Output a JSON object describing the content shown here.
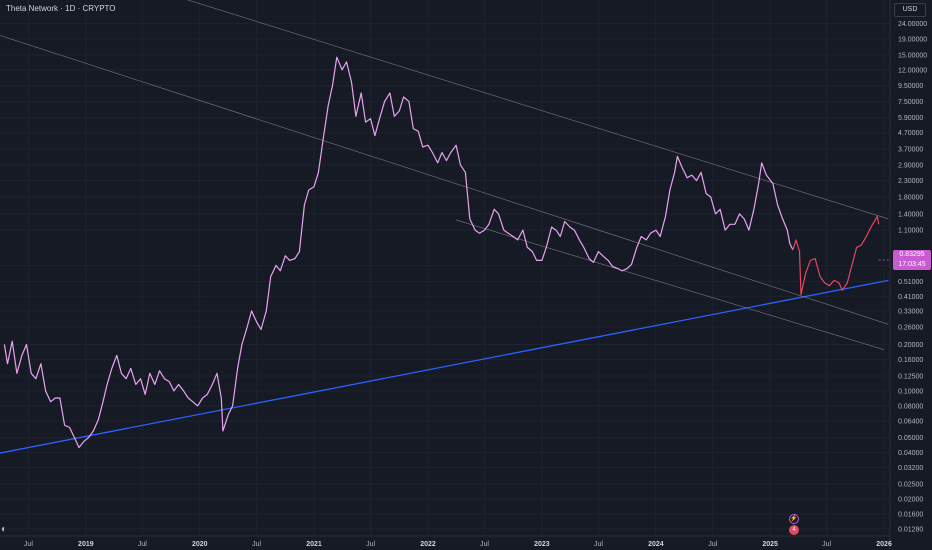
{
  "header": {
    "title": "Theta Network · 1D · CRYPTO",
    "currency": "USD"
  },
  "price_tag": {
    "price": "0.83295",
    "countdown": "17:03:45"
  },
  "markers": {
    "event_icon": "lightning-icon",
    "news_label": "4"
  },
  "logo_icon": "tradingview-logo-icon",
  "colors": {
    "background": "#161a25",
    "price_line": "#e9a3f0",
    "price_line_recent": "#e54662",
    "support_line": "#2962ff",
    "channel_lines": "#9598a1"
  },
  "chart_data": {
    "type": "line",
    "y_scale": "log",
    "ylim": [
      0.0115,
      34
    ],
    "xlim": [
      "2018-04-01",
      "2026-01-20"
    ],
    "y_ticks": [
      "24.00000",
      "19.00000",
      "15.00000",
      "12.00000",
      "9.50000",
      "7.50000",
      "5.90000",
      "4.70000",
      "3.70000",
      "2.90000",
      "2.30000",
      "1.80000",
      "1.40000",
      "1.10000",
      "0.65000",
      "0.51000",
      "0.41000",
      "0.33000",
      "0.26000",
      "0.20000",
      "0.16000",
      "0.12500",
      "0.10000",
      "0.08000",
      "0.06400",
      "0.05000",
      "0.04000",
      "0.03200",
      "0.02500",
      "0.02000",
      "0.01600",
      "0.01280"
    ],
    "x_ticks": [
      {
        "label": "Jul",
        "date": "2018-07-01",
        "year": false
      },
      {
        "label": "2019",
        "date": "2019-01-01",
        "year": true
      },
      {
        "label": "Jul",
        "date": "2019-07-01",
        "year": false
      },
      {
        "label": "2020",
        "date": "2020-01-01",
        "year": true
      },
      {
        "label": "Jul",
        "date": "2020-07-01",
        "year": false
      },
      {
        "label": "2021",
        "date": "2021-01-01",
        "year": true
      },
      {
        "label": "Jul",
        "date": "2021-07-01",
        "year": false
      },
      {
        "label": "2022",
        "date": "2022-01-01",
        "year": true
      },
      {
        "label": "Jul",
        "date": "2022-07-01",
        "year": false
      },
      {
        "label": "2023",
        "date": "2023-01-01",
        "year": true
      },
      {
        "label": "Jul",
        "date": "2023-07-01",
        "year": false
      },
      {
        "label": "2024",
        "date": "2024-01-01",
        "year": true
      },
      {
        "label": "Jul",
        "date": "2024-07-01",
        "year": false
      },
      {
        "label": "2025",
        "date": "2025-01-01",
        "year": true
      },
      {
        "label": "Jul",
        "date": "2025-07-01",
        "year": false
      },
      {
        "label": "2026",
        "date": "2026-01-01",
        "year": true
      }
    ],
    "series": [
      {
        "points": [
          [
            "2018-04-15",
            0.2
          ],
          [
            "2018-04-25",
            0.15
          ],
          [
            "2018-05-10",
            0.21
          ],
          [
            "2018-05-25",
            0.13
          ],
          [
            "2018-06-10",
            0.17
          ],
          [
            "2018-06-25",
            0.2
          ],
          [
            "2018-07-10",
            0.13
          ],
          [
            "2018-07-25",
            0.12
          ],
          [
            "2018-08-10",
            0.15
          ],
          [
            "2018-08-25",
            0.1
          ],
          [
            "2018-09-10",
            0.085
          ],
          [
            "2018-09-25",
            0.09
          ],
          [
            "2018-10-10",
            0.09
          ],
          [
            "2018-10-25",
            0.06
          ],
          [
            "2018-11-10",
            0.058
          ],
          [
            "2018-11-25",
            0.05
          ],
          [
            "2018-12-10",
            0.043
          ],
          [
            "2018-12-25",
            0.047
          ],
          [
            "2019-01-10",
            0.05
          ],
          [
            "2019-01-25",
            0.055
          ],
          [
            "2019-02-10",
            0.065
          ],
          [
            "2019-02-25",
            0.085
          ],
          [
            "2019-03-10",
            0.11
          ],
          [
            "2019-03-25",
            0.14
          ],
          [
            "2019-04-10",
            0.17
          ],
          [
            "2019-04-25",
            0.13
          ],
          [
            "2019-05-10",
            0.12
          ],
          [
            "2019-05-25",
            0.14
          ],
          [
            "2019-06-10",
            0.11
          ],
          [
            "2019-06-25",
            0.12
          ],
          [
            "2019-07-10",
            0.095
          ],
          [
            "2019-07-25",
            0.13
          ],
          [
            "2019-08-10",
            0.11
          ],
          [
            "2019-08-25",
            0.135
          ],
          [
            "2019-09-10",
            0.12
          ],
          [
            "2019-09-25",
            0.115
          ],
          [
            "2019-10-10",
            0.1
          ],
          [
            "2019-10-25",
            0.11
          ],
          [
            "2019-11-10",
            0.1
          ],
          [
            "2019-11-25",
            0.09
          ],
          [
            "2019-12-10",
            0.085
          ],
          [
            "2019-12-25",
            0.08
          ],
          [
            "2020-01-10",
            0.09
          ],
          [
            "2020-01-25",
            0.095
          ],
          [
            "2020-02-10",
            0.11
          ],
          [
            "2020-02-25",
            0.13
          ],
          [
            "2020-03-10",
            0.09
          ],
          [
            "2020-03-15",
            0.055
          ],
          [
            "2020-04-01",
            0.07
          ],
          [
            "2020-04-15",
            0.08
          ],
          [
            "2020-05-01",
            0.14
          ],
          [
            "2020-05-15",
            0.2
          ],
          [
            "2020-06-01",
            0.26
          ],
          [
            "2020-06-15",
            0.33
          ],
          [
            "2020-07-01",
            0.28
          ],
          [
            "2020-07-15",
            0.25
          ],
          [
            "2020-08-01",
            0.33
          ],
          [
            "2020-08-15",
            0.55
          ],
          [
            "2020-09-01",
            0.65
          ],
          [
            "2020-09-15",
            0.6
          ],
          [
            "2020-10-01",
            0.75
          ],
          [
            "2020-10-15",
            0.7
          ],
          [
            "2020-11-01",
            0.72
          ],
          [
            "2020-11-15",
            0.8
          ],
          [
            "2020-12-01",
            1.6
          ],
          [
            "2020-12-15",
            2.0
          ],
          [
            "2021-01-01",
            2.1
          ],
          [
            "2021-01-15",
            2.6
          ],
          [
            "2021-02-01",
            4.5
          ],
          [
            "2021-02-15",
            7.0
          ],
          [
            "2021-03-01",
            9.5
          ],
          [
            "2021-03-15",
            14.5
          ],
          [
            "2021-04-01",
            12.0
          ],
          [
            "2021-04-15",
            13.5
          ],
          [
            "2021-05-01",
            10.0
          ],
          [
            "2021-05-15",
            6.0
          ],
          [
            "2021-06-01",
            8.5
          ],
          [
            "2021-06-15",
            5.5
          ],
          [
            "2021-07-01",
            5.8
          ],
          [
            "2021-07-15",
            4.5
          ],
          [
            "2021-08-01",
            6.0
          ],
          [
            "2021-08-15",
            7.5
          ],
          [
            "2021-09-01",
            8.5
          ],
          [
            "2021-09-15",
            6.0
          ],
          [
            "2021-10-01",
            6.5
          ],
          [
            "2021-10-15",
            8.0
          ],
          [
            "2021-11-01",
            7.5
          ],
          [
            "2021-11-15",
            5.0
          ],
          [
            "2021-12-01",
            4.8
          ],
          [
            "2021-12-15",
            3.8
          ],
          [
            "2022-01-01",
            3.9
          ],
          [
            "2022-01-15",
            3.5
          ],
          [
            "2022-02-01",
            3.0
          ],
          [
            "2022-02-15",
            3.5
          ],
          [
            "2022-03-01",
            3.1
          ],
          [
            "2022-03-15",
            3.5
          ],
          [
            "2022-04-01",
            3.9
          ],
          [
            "2022-04-15",
            2.9
          ],
          [
            "2022-05-01",
            2.6
          ],
          [
            "2022-05-15",
            1.3
          ],
          [
            "2022-06-01",
            1.1
          ],
          [
            "2022-06-15",
            1.05
          ],
          [
            "2022-07-01",
            1.1
          ],
          [
            "2022-07-15",
            1.2
          ],
          [
            "2022-08-01",
            1.5
          ],
          [
            "2022-08-15",
            1.4
          ],
          [
            "2022-09-01",
            1.1
          ],
          [
            "2022-09-15",
            1.05
          ],
          [
            "2022-10-01",
            1.0
          ],
          [
            "2022-10-15",
            0.95
          ],
          [
            "2022-11-01",
            1.1
          ],
          [
            "2022-11-15",
            0.85
          ],
          [
            "2022-12-01",
            0.8
          ],
          [
            "2022-12-15",
            0.7
          ],
          [
            "2023-01-01",
            0.7
          ],
          [
            "2023-01-15",
            0.85
          ],
          [
            "2023-02-01",
            1.15
          ],
          [
            "2023-02-15",
            1.1
          ],
          [
            "2023-03-01",
            1.0
          ],
          [
            "2023-03-15",
            1.25
          ],
          [
            "2023-04-01",
            1.15
          ],
          [
            "2023-04-15",
            1.1
          ],
          [
            "2023-05-01",
            0.95
          ],
          [
            "2023-05-15",
            0.85
          ],
          [
            "2023-06-01",
            0.72
          ],
          [
            "2023-06-15",
            0.68
          ],
          [
            "2023-07-01",
            0.8
          ],
          [
            "2023-07-15",
            0.75
          ],
          [
            "2023-08-01",
            0.7
          ],
          [
            "2023-08-15",
            0.64
          ],
          [
            "2023-09-01",
            0.62
          ],
          [
            "2023-09-15",
            0.6
          ],
          [
            "2023-10-01",
            0.62
          ],
          [
            "2023-10-15",
            0.66
          ],
          [
            "2023-11-01",
            0.85
          ],
          [
            "2023-11-15",
            1.0
          ],
          [
            "2023-12-01",
            0.95
          ],
          [
            "2023-12-15",
            1.05
          ],
          [
            "2024-01-01",
            1.1
          ],
          [
            "2024-01-15",
            1.0
          ],
          [
            "2024-02-01",
            1.35
          ],
          [
            "2024-02-15",
            2.0
          ],
          [
            "2024-03-01",
            2.6
          ],
          [
            "2024-03-10",
            3.3
          ],
          [
            "2024-03-25",
            2.8
          ],
          [
            "2024-04-10",
            2.4
          ],
          [
            "2024-04-25",
            2.5
          ],
          [
            "2024-05-10",
            2.3
          ],
          [
            "2024-05-25",
            2.6
          ],
          [
            "2024-06-10",
            1.9
          ],
          [
            "2024-06-25",
            1.8
          ],
          [
            "2024-07-10",
            1.4
          ],
          [
            "2024-07-25",
            1.5
          ],
          [
            "2024-08-10",
            1.1
          ],
          [
            "2024-08-25",
            1.2
          ],
          [
            "2024-09-10",
            1.2
          ],
          [
            "2024-09-25",
            1.4
          ],
          [
            "2024-10-10",
            1.3
          ],
          [
            "2024-10-25",
            1.1
          ],
          [
            "2024-11-10",
            1.5
          ],
          [
            "2024-11-25",
            2.2
          ],
          [
            "2024-12-05",
            3.0
          ],
          [
            "2024-12-20",
            2.5
          ],
          [
            "2025-01-10",
            2.2
          ],
          [
            "2025-01-25",
            1.6
          ],
          [
            "2025-02-10",
            1.3
          ],
          [
            "2025-02-25",
            1.1
          ],
          [
            "2025-03-05",
            0.9
          ],
          [
            "2025-03-15",
            0.82
          ]
        ]
      },
      {
        "points": [
          [
            "2025-03-15",
            0.82
          ],
          [
            "2025-03-25",
            0.95
          ],
          [
            "2025-04-05",
            0.8
          ],
          [
            "2025-04-10",
            0.42
          ],
          [
            "2025-04-25",
            0.58
          ],
          [
            "2025-05-10",
            0.7
          ],
          [
            "2025-05-25",
            0.72
          ],
          [
            "2025-06-10",
            0.55
          ],
          [
            "2025-06-25",
            0.5
          ],
          [
            "2025-07-10",
            0.48
          ],
          [
            "2025-07-25",
            0.52
          ],
          [
            "2025-08-10",
            0.5
          ],
          [
            "2025-08-20",
            0.45
          ],
          [
            "2025-09-05",
            0.5
          ],
          [
            "2025-09-20",
            0.65
          ],
          [
            "2025-10-05",
            0.85
          ],
          [
            "2025-10-20",
            0.88
          ],
          [
            "2025-11-05",
            1.0
          ],
          [
            "2025-11-20",
            1.15
          ],
          [
            "2025-12-01",
            1.25
          ],
          [
            "2025-12-10",
            1.35
          ],
          [
            "2025-12-15",
            1.2
          ]
        ]
      }
    ],
    "trendlines": [
      {
        "kind": "support",
        "from": [
          "2018-03-01",
          0.0385
        ],
        "to": [
          "2026-01-15",
          0.52
        ]
      },
      {
        "kind": "channel",
        "from": [
          "2019-04-01",
          48
        ],
        "to": [
          "2026-01-15",
          1.3
        ]
      },
      {
        "kind": "channel",
        "from": [
          "2018-03-01",
          21
        ],
        "to": [
          "2026-01-15",
          0.27
        ]
      },
      {
        "kind": "channel",
        "from": [
          "2022-04-01",
          1.28
        ],
        "to": [
          "2026-01-01",
          0.185
        ]
      }
    ]
  }
}
